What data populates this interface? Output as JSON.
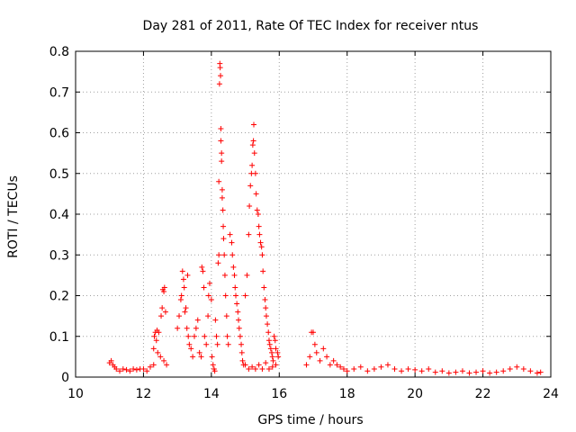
{
  "chart_data": {
    "type": "scatter",
    "title": "Day 281 of 2011, Rate Of TEC Index for receiver ntus",
    "xlabel": "GPS time / hours",
    "ylabel": "ROTI / TECUs",
    "xlim": [
      10,
      24
    ],
    "ylim": [
      0,
      0.8
    ],
    "xticks": [
      "10",
      "12",
      "14",
      "16",
      "18",
      "20",
      "22",
      "24"
    ],
    "yticks": [
      "0",
      "0.1",
      "0.2",
      "0.3",
      "0.4",
      "0.5",
      "0.6",
      "0.7",
      "0.8"
    ],
    "grid": true,
    "marker": "+",
    "color": "#ff0000",
    "series": [
      {
        "name": "ROTI",
        "points": [
          [
            11.0,
            0.035
          ],
          [
            11.05,
            0.04
          ],
          [
            11.1,
            0.03
          ],
          [
            11.15,
            0.025
          ],
          [
            11.2,
            0.02
          ],
          [
            11.3,
            0.015
          ],
          [
            11.4,
            0.02
          ],
          [
            11.5,
            0.018
          ],
          [
            11.6,
            0.015
          ],
          [
            11.7,
            0.02
          ],
          [
            11.8,
            0.018
          ],
          [
            11.9,
            0.02
          ],
          [
            12.0,
            0.02
          ],
          [
            12.1,
            0.015
          ],
          [
            12.2,
            0.025
          ],
          [
            12.3,
            0.03
          ],
          [
            12.3,
            0.07
          ],
          [
            12.32,
            0.1
          ],
          [
            12.35,
            0.11
          ],
          [
            12.38,
            0.09
          ],
          [
            12.4,
            0.115
          ],
          [
            12.42,
            0.06
          ],
          [
            12.45,
            0.11
          ],
          [
            12.5,
            0.05
          ],
          [
            12.52,
            0.15
          ],
          [
            12.55,
            0.17
          ],
          [
            12.57,
            0.215
          ],
          [
            12.6,
            0.21
          ],
          [
            12.62,
            0.22
          ],
          [
            12.6,
            0.04
          ],
          [
            12.65,
            0.16
          ],
          [
            12.68,
            0.03
          ],
          [
            13.0,
            0.12
          ],
          [
            13.05,
            0.15
          ],
          [
            13.1,
            0.19
          ],
          [
            13.12,
            0.2
          ],
          [
            13.15,
            0.26
          ],
          [
            13.18,
            0.24
          ],
          [
            13.2,
            0.22
          ],
          [
            13.22,
            0.16
          ],
          [
            13.25,
            0.17
          ],
          [
            13.28,
            0.12
          ],
          [
            13.3,
            0.25
          ],
          [
            13.32,
            0.1
          ],
          [
            13.35,
            0.08
          ],
          [
            13.4,
            0.07
          ],
          [
            13.45,
            0.05
          ],
          [
            13.5,
            0.1
          ],
          [
            13.55,
            0.12
          ],
          [
            13.6,
            0.14
          ],
          [
            13.65,
            0.06
          ],
          [
            13.7,
            0.05
          ],
          [
            13.72,
            0.27
          ],
          [
            13.75,
            0.26
          ],
          [
            13.78,
            0.22
          ],
          [
            13.8,
            0.1
          ],
          [
            13.85,
            0.08
          ],
          [
            13.9,
            0.15
          ],
          [
            13.92,
            0.2
          ],
          [
            13.95,
            0.23
          ],
          [
            14.0,
            0.19
          ],
          [
            14.02,
            0.05
          ],
          [
            14.05,
            0.03
          ],
          [
            14.08,
            0.02
          ],
          [
            14.1,
            0.015
          ],
          [
            14.12,
            0.14
          ],
          [
            14.15,
            0.1
          ],
          [
            14.18,
            0.08
          ],
          [
            14.2,
            0.28
          ],
          [
            14.22,
            0.3
          ],
          [
            14.22,
            0.48
          ],
          [
            14.24,
            0.72
          ],
          [
            14.25,
            0.77
          ],
          [
            14.26,
            0.76
          ],
          [
            14.27,
            0.74
          ],
          [
            14.28,
            0.61
          ],
          [
            14.28,
            0.58
          ],
          [
            14.3,
            0.55
          ],
          [
            14.3,
            0.53
          ],
          [
            14.32,
            0.46
          ],
          [
            14.32,
            0.44
          ],
          [
            14.34,
            0.41
          ],
          [
            14.35,
            0.37
          ],
          [
            14.36,
            0.34
          ],
          [
            14.38,
            0.3
          ],
          [
            14.4,
            0.25
          ],
          [
            14.42,
            0.2
          ],
          [
            14.45,
            0.15
          ],
          [
            14.47,
            0.1
          ],
          [
            14.5,
            0.08
          ],
          [
            14.55,
            0.35
          ],
          [
            14.6,
            0.33
          ],
          [
            14.62,
            0.3
          ],
          [
            14.65,
            0.27
          ],
          [
            14.68,
            0.25
          ],
          [
            14.7,
            0.22
          ],
          [
            14.72,
            0.2
          ],
          [
            14.75,
            0.18
          ],
          [
            14.78,
            0.16
          ],
          [
            14.8,
            0.14
          ],
          [
            14.82,
            0.12
          ],
          [
            14.85,
            0.1
          ],
          [
            14.88,
            0.08
          ],
          [
            14.9,
            0.06
          ],
          [
            14.92,
            0.04
          ],
          [
            14.95,
            0.03
          ],
          [
            15.0,
            0.2
          ],
          [
            15.05,
            0.25
          ],
          [
            15.1,
            0.35
          ],
          [
            15.12,
            0.42
          ],
          [
            15.15,
            0.47
          ],
          [
            15.18,
            0.5
          ],
          [
            15.2,
            0.52
          ],
          [
            15.22,
            0.57
          ],
          [
            15.24,
            0.58
          ],
          [
            15.25,
            0.62
          ],
          [
            15.27,
            0.55
          ],
          [
            15.3,
            0.5
          ],
          [
            15.32,
            0.45
          ],
          [
            15.35,
            0.41
          ],
          [
            15.38,
            0.4
          ],
          [
            15.4,
            0.37
          ],
          [
            15.42,
            0.35
          ],
          [
            15.45,
            0.33
          ],
          [
            15.48,
            0.32
          ],
          [
            15.5,
            0.3
          ],
          [
            15.52,
            0.26
          ],
          [
            15.55,
            0.22
          ],
          [
            15.58,
            0.19
          ],
          [
            15.6,
            0.17
          ],
          [
            15.62,
            0.15
          ],
          [
            15.65,
            0.13
          ],
          [
            15.68,
            0.11
          ],
          [
            15.7,
            0.09
          ],
          [
            15.72,
            0.08
          ],
          [
            15.75,
            0.07
          ],
          [
            15.78,
            0.06
          ],
          [
            15.8,
            0.05
          ],
          [
            15.82,
            0.04
          ],
          [
            15.85,
            0.1
          ],
          [
            15.88,
            0.09
          ],
          [
            15.9,
            0.07
          ],
          [
            15.95,
            0.06
          ],
          [
            15.97,
            0.05
          ],
          [
            15.0,
            0.03
          ],
          [
            15.1,
            0.02
          ],
          [
            15.2,
            0.025
          ],
          [
            15.3,
            0.02
          ],
          [
            15.4,
            0.03
          ],
          [
            15.5,
            0.02
          ],
          [
            15.6,
            0.035
          ],
          [
            15.7,
            0.02
          ],
          [
            15.8,
            0.025
          ],
          [
            15.9,
            0.03
          ],
          [
            16.8,
            0.03
          ],
          [
            16.9,
            0.05
          ],
          [
            16.95,
            0.11
          ],
          [
            17.0,
            0.11
          ],
          [
            17.05,
            0.08
          ],
          [
            17.1,
            0.06
          ],
          [
            17.2,
            0.04
          ],
          [
            17.3,
            0.07
          ],
          [
            17.4,
            0.05
          ],
          [
            17.5,
            0.03
          ],
          [
            17.6,
            0.04
          ],
          [
            17.7,
            0.03
          ],
          [
            17.8,
            0.025
          ],
          [
            17.9,
            0.02
          ],
          [
            18.0,
            0.015
          ],
          [
            18.2,
            0.02
          ],
          [
            18.4,
            0.025
          ],
          [
            18.6,
            0.015
          ],
          [
            18.8,
            0.02
          ],
          [
            19.0,
            0.025
          ],
          [
            19.2,
            0.03
          ],
          [
            19.4,
            0.02
          ],
          [
            19.6,
            0.015
          ],
          [
            19.8,
            0.02
          ],
          [
            20.0,
            0.018
          ],
          [
            20.2,
            0.015
          ],
          [
            20.4,
            0.02
          ],
          [
            20.6,
            0.012
          ],
          [
            20.8,
            0.015
          ],
          [
            21.0,
            0.01
          ],
          [
            21.2,
            0.012
          ],
          [
            21.4,
            0.015
          ],
          [
            21.6,
            0.01
          ],
          [
            21.8,
            0.012
          ],
          [
            22.0,
            0.015
          ],
          [
            22.2,
            0.01
          ],
          [
            22.4,
            0.012
          ],
          [
            22.6,
            0.015
          ],
          [
            22.8,
            0.02
          ],
          [
            23.0,
            0.025
          ],
          [
            23.2,
            0.02
          ],
          [
            23.4,
            0.015
          ],
          [
            23.6,
            0.01
          ],
          [
            23.7,
            0.012
          ]
        ]
      }
    ]
  }
}
